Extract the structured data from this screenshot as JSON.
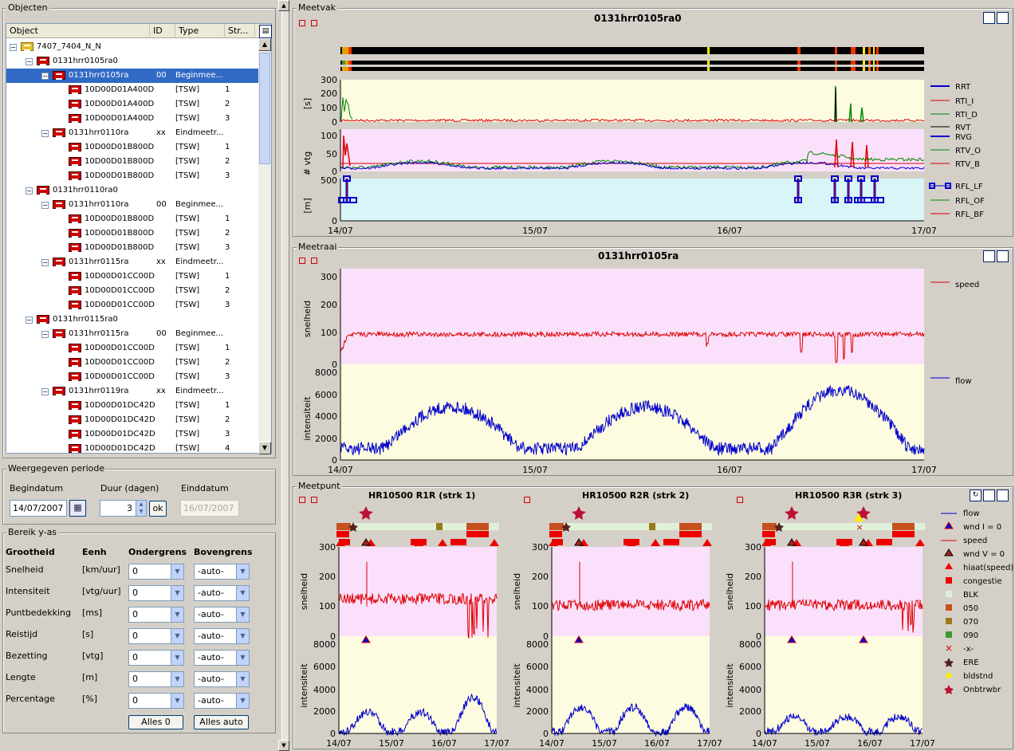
{
  "objecten": {
    "title": "Objecten",
    "columns": [
      "Object",
      "ID",
      "Type",
      "Str..."
    ],
    "rows": [
      {
        "indent": 0,
        "label": "7407_7404_N_N",
        "id": "",
        "type": "",
        "str": "",
        "icon": "link-icon",
        "exp": "-"
      },
      {
        "indent": 1,
        "label": "0131hrr0105ra0",
        "id": "",
        "type": "",
        "str": "",
        "icon": "road-icon",
        "exp": "-"
      },
      {
        "indent": 2,
        "label": "0131hrr0105ra",
        "id": "00",
        "type": "Beginmee...",
        "str": "",
        "icon": "road-icon",
        "exp": "-",
        "selected": true
      },
      {
        "indent": 3,
        "label": "10D00D01A400D",
        "id": "",
        "type": "[TSW]",
        "str": "1",
        "icon": "detector-icon"
      },
      {
        "indent": 3,
        "label": "10D00D01A400D",
        "id": "",
        "type": "[TSW]",
        "str": "2",
        "icon": "detector-icon"
      },
      {
        "indent": 3,
        "label": "10D00D01A400D",
        "id": "",
        "type": "[TSW]",
        "str": "3",
        "icon": "detector-icon"
      },
      {
        "indent": 2,
        "label": "0131hrr0110ra",
        "id": "xx",
        "type": "Eindmeetr...",
        "str": "",
        "icon": "road-icon",
        "exp": "-"
      },
      {
        "indent": 3,
        "label": "10D00D01B800D",
        "id": "",
        "type": "[TSW]",
        "str": "1",
        "icon": "detector-icon"
      },
      {
        "indent": 3,
        "label": "10D00D01B800D",
        "id": "",
        "type": "[TSW]",
        "str": "2",
        "icon": "detector-icon"
      },
      {
        "indent": 3,
        "label": "10D00D01B800D",
        "id": "",
        "type": "[TSW]",
        "str": "3",
        "icon": "detector-icon"
      },
      {
        "indent": 1,
        "label": "0131hrr0110ra0",
        "id": "",
        "type": "",
        "str": "",
        "icon": "road-icon",
        "exp": "-"
      },
      {
        "indent": 2,
        "label": "0131hrr0110ra",
        "id": "00",
        "type": "Beginmee...",
        "str": "",
        "icon": "road-icon",
        "exp": "-"
      },
      {
        "indent": 3,
        "label": "10D00D01B800D",
        "id": "",
        "type": "[TSW]",
        "str": "1",
        "icon": "detector-icon"
      },
      {
        "indent": 3,
        "label": "10D00D01B800D",
        "id": "",
        "type": "[TSW]",
        "str": "2",
        "icon": "detector-icon"
      },
      {
        "indent": 3,
        "label": "10D00D01B800D",
        "id": "",
        "type": "[TSW]",
        "str": "3",
        "icon": "detector-icon"
      },
      {
        "indent": 2,
        "label": "0131hrr0115ra",
        "id": "xx",
        "type": "Eindmeetr...",
        "str": "",
        "icon": "road-icon",
        "exp": "-"
      },
      {
        "indent": 3,
        "label": "10D00D01CC00D",
        "id": "",
        "type": "[TSW]",
        "str": "1",
        "icon": "detector-icon"
      },
      {
        "indent": 3,
        "label": "10D00D01CC00D",
        "id": "",
        "type": "[TSW]",
        "str": "2",
        "icon": "detector-icon"
      },
      {
        "indent": 3,
        "label": "10D00D01CC00D",
        "id": "",
        "type": "[TSW]",
        "str": "3",
        "icon": "detector-icon"
      },
      {
        "indent": 1,
        "label": "0131hrr0115ra0",
        "id": "",
        "type": "",
        "str": "",
        "icon": "road-icon",
        "exp": "-"
      },
      {
        "indent": 2,
        "label": "0131hrr0115ra",
        "id": "00",
        "type": "Beginmee...",
        "str": "",
        "icon": "road-icon",
        "exp": "-"
      },
      {
        "indent": 3,
        "label": "10D00D01CC00D",
        "id": "",
        "type": "[TSW]",
        "str": "1",
        "icon": "detector-icon"
      },
      {
        "indent": 3,
        "label": "10D00D01CC00D",
        "id": "",
        "type": "[TSW]",
        "str": "2",
        "icon": "detector-icon"
      },
      {
        "indent": 3,
        "label": "10D00D01CC00D",
        "id": "",
        "type": "[TSW]",
        "str": "3",
        "icon": "detector-icon"
      },
      {
        "indent": 2,
        "label": "0131hrr0119ra",
        "id": "xx",
        "type": "Eindmeetr...",
        "str": "",
        "icon": "road-icon",
        "exp": "-"
      },
      {
        "indent": 3,
        "label": "10D00D01DC42D",
        "id": "",
        "type": "[TSW]",
        "str": "1",
        "icon": "detector-icon"
      },
      {
        "indent": 3,
        "label": "10D00D01DC42D",
        "id": "",
        "type": "[TSW]",
        "str": "2",
        "icon": "detector-icon"
      },
      {
        "indent": 3,
        "label": "10D00D01DC42D",
        "id": "",
        "type": "[TSW]",
        "str": "3",
        "icon": "detector-icon"
      },
      {
        "indent": 3,
        "label": "10D00D01DC42D",
        "id": "",
        "type": "[TSW]",
        "str": "4",
        "icon": "detector-icon"
      }
    ]
  },
  "periode": {
    "title": "Weergegeven periode",
    "begin_label": "Begindatum",
    "begin_value": "14/07/2007",
    "duur_label": "Duur (dagen)",
    "duur_value": "3",
    "ok_label": "ok",
    "eind_label": "Einddatum",
    "eind_value": "16/07/2007"
  },
  "bereik": {
    "title": "Bereik y-as",
    "headers": [
      "Grootheid",
      "Eenh",
      "Ondergrens",
      "Bovengrens"
    ],
    "rows": [
      {
        "name": "Snelheid",
        "unit": "[km/uur]",
        "min": "0",
        "max": "-auto-"
      },
      {
        "name": "Intensiteit",
        "unit": "[vtg/uur]",
        "min": "0",
        "max": "-auto-"
      },
      {
        "name": "Puntbedekking",
        "unit": "[ms]",
        "min": "0",
        "max": "-auto-"
      },
      {
        "name": "Reistijd",
        "unit": "[s]",
        "min": "0",
        "max": "-auto-"
      },
      {
        "name": "Bezetting",
        "unit": "[vtg]",
        "min": "0",
        "max": "-auto-"
      },
      {
        "name": "Lengte",
        "unit": "[m]",
        "min": "0",
        "max": "-auto-"
      },
      {
        "name": "Percentage",
        "unit": "[%]",
        "min": "0",
        "max": "-auto-"
      }
    ],
    "btn_zero": "Alles 0",
    "btn_auto": "Alles auto"
  },
  "meetvak": {
    "title": "Meetvak",
    "plot_title": "0131hrr0105ra0",
    "axes": [
      {
        "ylabel": "[s]",
        "ticks": [
          "300",
          "200",
          "100",
          "0"
        ]
      },
      {
        "ylabel": "# vtg",
        "ticks": [
          "100",
          "50",
          "0"
        ]
      },
      {
        "ylabel": "[m]",
        "ticks": [
          "500",
          "0"
        ]
      }
    ],
    "xticks": [
      "14/07",
      "15/07",
      "16/07",
      "17/07"
    ],
    "legend": [
      {
        "name": "RRT",
        "color": "#0000cc"
      },
      {
        "name": "RTI_I",
        "color": "#dd0000"
      },
      {
        "name": "RTI_D",
        "color": "#008800"
      },
      {
        "name": "RVT",
        "color": "#000000"
      },
      {
        "name": "RVG",
        "color": "#0000cc"
      },
      {
        "name": "RTV_O",
        "color": "#008800"
      },
      {
        "name": "RTV_B",
        "color": "#dd0000"
      },
      {
        "name": "RFL_LF",
        "color": "#0000cc"
      },
      {
        "name": "RFL_OF",
        "color": "#008800"
      },
      {
        "name": "RFL_BF",
        "color": "#dd0000"
      }
    ]
  },
  "meetraai": {
    "title": "Meetraai",
    "plot_title": "0131hrr0105ra",
    "speed_label": "snelheid",
    "flow_label": "intensiteit",
    "speed_ticks": [
      "300",
      "200",
      "100",
      "0"
    ],
    "flow_ticks": [
      "8000",
      "6000",
      "4000",
      "2000",
      "0"
    ],
    "xticks": [
      "14/07",
      "15/07",
      "16/07",
      "17/07"
    ],
    "legend_speed": "speed",
    "legend_flow": "flow"
  },
  "meetpunt": {
    "title": "Meetpunt",
    "panels": [
      {
        "title": "HR10500  R1R (strk 1)"
      },
      {
        "title": "HR10500  R2R (strk 2)"
      },
      {
        "title": "HR10500  R3R (strk 3)"
      }
    ],
    "speed_label": "snelheid",
    "flow_label": "intensiteit",
    "speed_ticks": [
      "300",
      "200",
      "100",
      "0"
    ],
    "flow_ticks": [
      "8000",
      "6000",
      "4000",
      "2000",
      "0"
    ],
    "xticks": [
      "14/07",
      "15/07",
      "16/07",
      "17/07"
    ],
    "legend": [
      {
        "name": "flow",
        "kind": "line",
        "color": "#0000cc"
      },
      {
        "name": "wnd I = 0",
        "kind": "tri-blue",
        "color": "#dd0000"
      },
      {
        "name": "speed",
        "kind": "line",
        "color": "#dd0000"
      },
      {
        "name": "wnd V = 0",
        "kind": "tri-dark",
        "color": "#aa2222"
      },
      {
        "name": "hiaat(speed)",
        "kind": "tri",
        "color": "#ee0000"
      },
      {
        "name": "congestie",
        "kind": "square",
        "color": "#ee0000"
      },
      {
        "name": "BLK",
        "kind": "square",
        "color": "#dff0d8"
      },
      {
        "name": "050",
        "kind": "square",
        "color": "#c8501e"
      },
      {
        "name": "070",
        "kind": "square",
        "color": "#9a7a1a"
      },
      {
        "name": "090",
        "kind": "square",
        "color": "#3a9a2a"
      },
      {
        "name": "-x-",
        "kind": "x",
        "color": "#dd0000"
      },
      {
        "name": "ERE",
        "kind": "star",
        "color": "#552222"
      },
      {
        "name": "bldstnd",
        "kind": "tri",
        "color": "#ffee00"
      },
      {
        "name": "Onbtrwbr",
        "kind": "star",
        "color": "#bb1133"
      }
    ]
  }
}
